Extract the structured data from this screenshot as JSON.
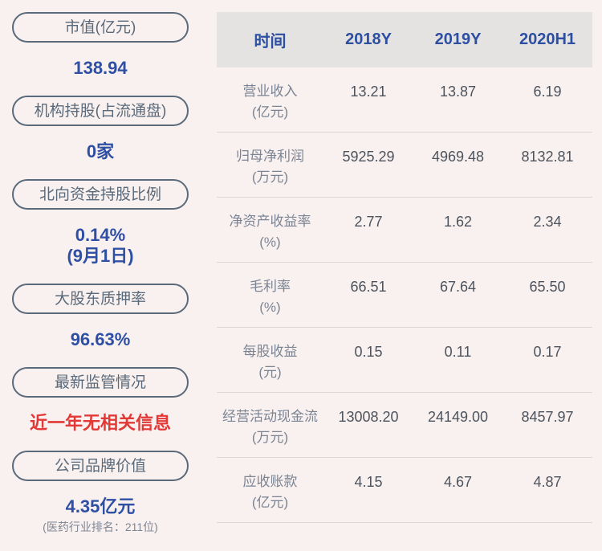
{
  "colors": {
    "page_background": "#f9f1f0",
    "pill_border": "#5b6a7a",
    "value_blue": "#2e4fa3",
    "alert_red": "#e23836",
    "table_header_bg": "#e4e3e2",
    "table_header_text": "#2d4fa2",
    "row_label_gray": "#7b8493",
    "cell_value_gray": "#4d535c",
    "divider": "#ddd6d4"
  },
  "sidebar": {
    "items": [
      {
        "label": "市值(亿元)",
        "value": "138.94"
      },
      {
        "label": "机构持股(占流通盘)",
        "value": "0家"
      },
      {
        "label": "北向资金持股比例",
        "value": "0.14%",
        "value2": "(9月1日)"
      },
      {
        "label": "大股东质押率",
        "value": "96.63%"
      },
      {
        "label": "最新监管情况",
        "value": "近一年无相关信息"
      },
      {
        "label": "公司品牌价值",
        "value": "4.35亿元",
        "note": "(医药行业排名：211位)"
      }
    ]
  },
  "table": {
    "columns": [
      "时间",
      "2018Y",
      "2019Y",
      "2020H1"
    ],
    "rows": [
      {
        "label": "营业收入",
        "unit": "(亿元)",
        "values": [
          "13.21",
          "13.87",
          "6.19"
        ]
      },
      {
        "label": "归母净利润",
        "unit": "(万元)",
        "values": [
          "5925.29",
          "4969.48",
          "8132.81"
        ]
      },
      {
        "label": "净资产收益率",
        "unit": "(%)",
        "values": [
          "2.77",
          "1.62",
          "2.34"
        ]
      },
      {
        "label": "毛利率",
        "unit": "(%)",
        "values": [
          "66.51",
          "67.64",
          "65.50"
        ]
      },
      {
        "label": "每股收益",
        "unit": "(元)",
        "values": [
          "0.15",
          "0.11",
          "0.17"
        ]
      },
      {
        "label": "经营活动现金流",
        "unit": "(万元)",
        "values": [
          "13008.20",
          "24149.00",
          "8457.97"
        ]
      },
      {
        "label": "应收账款",
        "unit": "(亿元)",
        "values": [
          "4.15",
          "4.67",
          "4.87"
        ]
      }
    ]
  }
}
